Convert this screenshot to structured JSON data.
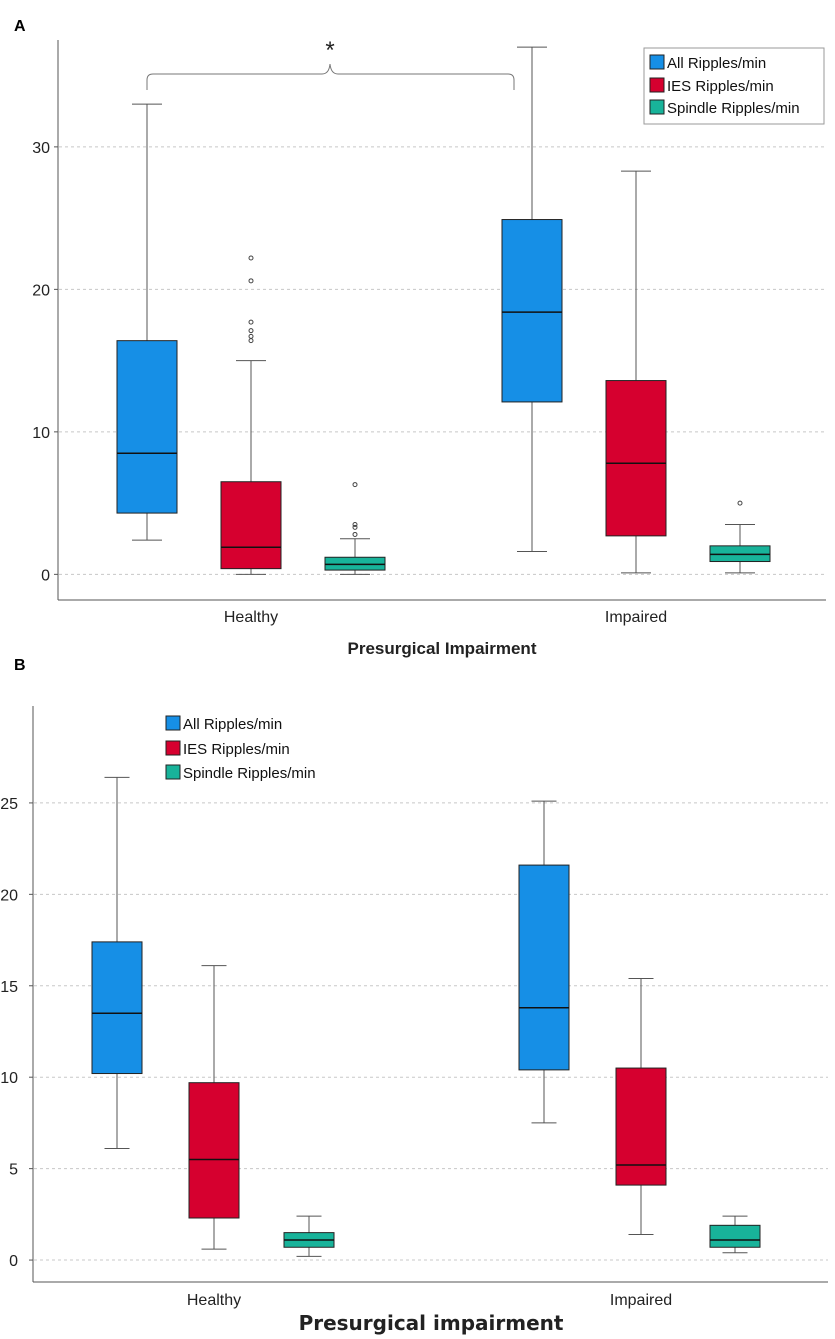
{
  "colors": {
    "all": "#168fe6",
    "ies": "#d6002f",
    "spindle": "#18b39a",
    "axis": "#555555",
    "grid": "#c8c8c8"
  },
  "chart_data": [
    {
      "panel": "A",
      "type": "box",
      "xlabel": "Presurgical Impairment",
      "ylabel": "",
      "ylim": [
        -1.8,
        37.5
      ],
      "yticks": [
        0,
        10,
        20,
        30
      ],
      "grid": true,
      "legend_position": "top-right",
      "categories": [
        "Healthy",
        "Impaired"
      ],
      "significance_label": "*",
      "series": [
        {
          "key": "all",
          "name": "All Ripples/min",
          "boxes": [
            {
              "min": 2.4,
              "q1": 4.3,
              "median": 8.5,
              "q3": 16.4,
              "max": 33.0,
              "outliers": []
            },
            {
              "min": 1.6,
              "q1": 12.1,
              "median": 18.4,
              "q3": 24.9,
              "max": 37.0,
              "outliers": []
            }
          ]
        },
        {
          "key": "ies",
          "name": "IES Ripples/min",
          "boxes": [
            {
              "min": 0.0,
              "q1": 0.4,
              "median": 1.9,
              "q3": 6.5,
              "max": 15.0,
              "outliers": [
                16.4,
                16.7,
                17.1,
                17.7,
                20.6,
                22.2
              ]
            },
            {
              "min": 0.1,
              "q1": 2.7,
              "median": 7.8,
              "q3": 13.6,
              "max": 28.3,
              "outliers": []
            }
          ]
        },
        {
          "key": "spindle",
          "name": "Spindle Ripples/min",
          "boxes": [
            {
              "min": 0.0,
              "q1": 0.3,
              "median": 0.7,
              "q3": 1.2,
              "max": 2.5,
              "outliers": [
                2.8,
                3.3,
                3.5,
                6.3
              ]
            },
            {
              "min": 0.1,
              "q1": 0.9,
              "median": 1.4,
              "q3": 2.0,
              "max": 3.5,
              "outliers": [
                5.0
              ]
            }
          ]
        }
      ]
    },
    {
      "panel": "B",
      "type": "box",
      "xlabel": "Presurgical impairment",
      "ylabel": "",
      "ylim": [
        -1.2,
        30.3
      ],
      "yticks": [
        0,
        5,
        10,
        15,
        20,
        25
      ],
      "grid": true,
      "legend_position": "top-left",
      "categories": [
        "Healthy",
        "Impaired"
      ],
      "series": [
        {
          "key": "all",
          "name": "All Ripples/min",
          "boxes": [
            {
              "min": 6.1,
              "q1": 10.2,
              "median": 13.5,
              "q3": 17.4,
              "max": 26.4,
              "outliers": []
            },
            {
              "min": 7.5,
              "q1": 10.4,
              "median": 13.8,
              "q3": 21.6,
              "max": 25.1,
              "outliers": []
            }
          ]
        },
        {
          "key": "ies",
          "name": "IES Ripples/min",
          "boxes": [
            {
              "min": 0.6,
              "q1": 2.3,
              "median": 5.5,
              "q3": 9.7,
              "max": 16.1,
              "outliers": []
            },
            {
              "min": 1.4,
              "q1": 4.1,
              "median": 5.2,
              "q3": 10.5,
              "max": 15.4,
              "outliers": []
            }
          ]
        },
        {
          "key": "spindle",
          "name": "Spindle Ripples/min",
          "boxes": [
            {
              "min": 0.2,
              "q1": 0.7,
              "median": 1.1,
              "q3": 1.5,
              "max": 2.4,
              "outliers": []
            },
            {
              "min": 0.4,
              "q1": 0.7,
              "median": 1.1,
              "q3": 1.9,
              "max": 2.4,
              "outliers": []
            }
          ]
        }
      ]
    }
  ]
}
